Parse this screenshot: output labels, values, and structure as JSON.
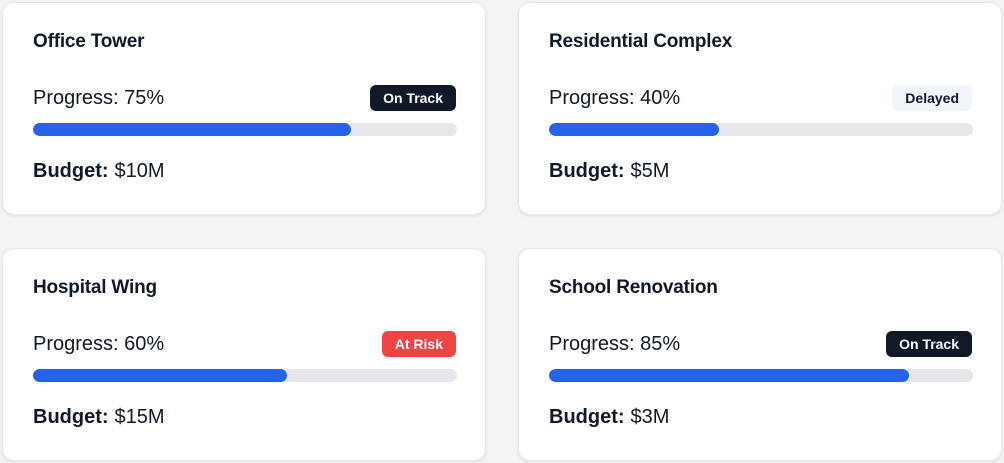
{
  "bar_color": "#2563eb",
  "track_color": "#e5e7eb",
  "max_progress": 100,
  "cards": [
    {
      "title": "Office Tower",
      "progress_label": "Progress: 75%",
      "progress": 75,
      "status": "On Track",
      "status_bg": "#111827",
      "status_fg": "#ffffff",
      "budget_label": "Budget:",
      "budget": "$10M"
    },
    {
      "title": "Residential Complex",
      "progress_label": "Progress: 40%",
      "progress": 40,
      "status": "Delayed",
      "status_bg": "#f1f5f9",
      "status_fg": "#111827",
      "budget_label": "Budget:",
      "budget": "$5M"
    },
    {
      "title": "Hospital Wing",
      "progress_label": "Progress: 60%",
      "progress": 60,
      "status": "At Risk",
      "status_bg": "#ef4444",
      "status_fg": "#ffffff",
      "budget_label": "Budget:",
      "budget": "$15M"
    },
    {
      "title": "School Renovation",
      "progress_label": "Progress: 85%",
      "progress": 85,
      "status": "On Track",
      "status_bg": "#111827",
      "status_fg": "#ffffff",
      "budget_label": "Budget:",
      "budget": "$3M"
    }
  ]
}
